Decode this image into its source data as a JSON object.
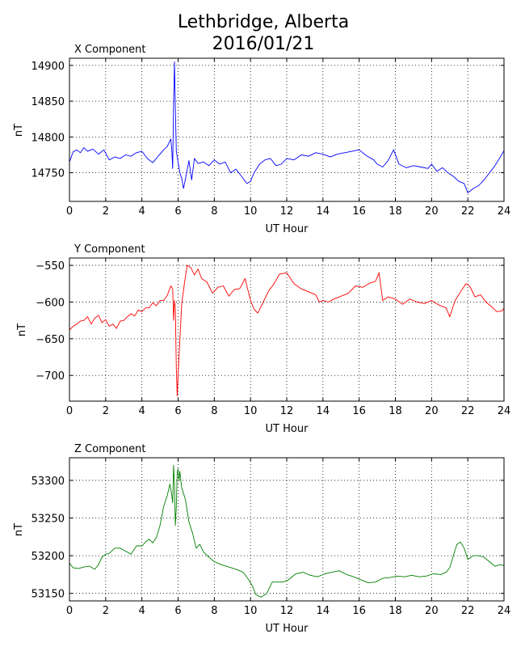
{
  "figure": {
    "title_line1": "Lethbridge, Alberta",
    "title_line2": "2016/01/21"
  },
  "chart_data": [
    {
      "type": "line",
      "title": "X Component",
      "xlabel": "UT Hour",
      "ylabel": "nT",
      "xlim": [
        0,
        24
      ],
      "ylim": [
        14710,
        14910
      ],
      "xticks": [
        0,
        2,
        4,
        6,
        8,
        10,
        12,
        14,
        16,
        18,
        20,
        22,
        24
      ],
      "yticks": [
        14750,
        14800,
        14850,
        14900
      ],
      "grid": true,
      "color": "#0000ff",
      "series": [
        {
          "x": [
            0,
            0.2,
            0.4,
            0.6,
            0.8,
            1.0,
            1.3,
            1.6,
            1.9,
            2.2,
            2.5,
            2.8,
            3.1,
            3.4,
            3.7,
            4.0,
            4.3,
            4.6,
            4.9,
            5.2,
            5.4,
            5.6,
            5.65,
            5.7,
            5.75,
            5.8,
            5.85,
            5.9,
            6.0,
            6.1,
            6.2,
            6.3,
            6.45,
            6.6,
            6.75,
            6.9,
            7.1,
            7.4,
            7.7,
            8.0,
            8.3,
            8.6,
            8.9,
            9.2,
            9.5,
            9.8,
            10.0,
            10.2,
            10.5,
            10.8,
            11.1,
            11.4,
            11.7,
            12.0,
            12.4,
            12.8,
            13.2,
            13.6,
            14.0,
            14.4,
            14.8,
            15.2,
            15.6,
            16.0,
            16.4,
            16.8,
            17.0,
            17.3,
            17.6,
            17.9,
            18.2,
            18.6,
            19.0,
            19.4,
            19.8,
            20.0,
            20.3,
            20.6,
            20.9,
            21.2,
            21.5,
            21.8,
            22.0,
            22.3,
            22.6,
            22.9,
            23.2,
            23.5,
            23.8,
            24.0
          ],
          "y": [
            14765,
            14779,
            14782,
            14778,
            14785,
            14780,
            14783,
            14776,
            14782,
            14768,
            14772,
            14770,
            14775,
            14773,
            14778,
            14780,
            14770,
            14764,
            14773,
            14782,
            14787,
            14797,
            14782,
            14756,
            14845,
            14905,
            14840,
            14780,
            14765,
            14750,
            14742,
            14728,
            14747,
            14767,
            14740,
            14770,
            14763,
            14765,
            14760,
            14768,
            14762,
            14765,
            14750,
            14755,
            14745,
            14735,
            14738,
            14750,
            14762,
            14768,
            14770,
            14760,
            14762,
            14770,
            14768,
            14775,
            14773,
            14778,
            14776,
            14772,
            14776,
            14778,
            14780,
            14782,
            14774,
            14768,
            14762,
            14758,
            14767,
            14782,
            14762,
            14757,
            14760,
            14758,
            14756,
            14762,
            14752,
            14757,
            14750,
            14745,
            14738,
            14735,
            14722,
            14728,
            14732,
            14740,
            14750,
            14760,
            14772,
            14781
          ]
        }
      ]
    },
    {
      "type": "line",
      "title": "Y Component",
      "xlabel": "UT Hour",
      "ylabel": "nT",
      "xlim": [
        0,
        24
      ],
      "ylim": [
        -735,
        -540
      ],
      "xticks": [
        0,
        2,
        4,
        6,
        8,
        10,
        12,
        14,
        16,
        18,
        20,
        22,
        24
      ],
      "yticks": [
        -700,
        -650,
        -600,
        -550
      ],
      "grid": true,
      "color": "#ff0000",
      "series": [
        {
          "x": [
            0,
            0.2,
            0.4,
            0.6,
            0.8,
            1.0,
            1.2,
            1.4,
            1.6,
            1.8,
            2.0,
            2.2,
            2.4,
            2.6,
            2.8,
            3.0,
            3.2,
            3.4,
            3.6,
            3.8,
            4.0,
            4.2,
            4.4,
            4.6,
            4.8,
            5.0,
            5.2,
            5.4,
            5.6,
            5.7,
            5.75,
            5.8,
            5.85,
            5.9,
            5.95,
            6.0,
            6.1,
            6.2,
            6.35,
            6.5,
            6.7,
            6.9,
            7.1,
            7.3,
            7.6,
            7.9,
            8.2,
            8.5,
            8.8,
            9.1,
            9.4,
            9.7,
            10.0,
            10.2,
            10.4,
            10.7,
            11.0,
            11.3,
            11.6,
            12.0,
            12.4,
            12.8,
            13.2,
            13.6,
            13.8,
            14.0,
            14.3,
            14.6,
            15.0,
            15.4,
            15.8,
            16.2,
            16.6,
            16.9,
            17.1,
            17.3,
            17.6,
            18.0,
            18.4,
            18.8,
            19.2,
            19.6,
            20.0,
            20.4,
            20.8,
            21.0,
            21.3,
            21.6,
            21.9,
            22.1,
            22.4,
            22.7,
            23.0,
            23.3,
            23.6,
            23.9,
            24.0
          ],
          "y": [
            -638,
            -633,
            -630,
            -626,
            -625,
            -620,
            -630,
            -622,
            -618,
            -628,
            -624,
            -633,
            -630,
            -636,
            -626,
            -625,
            -620,
            -616,
            -619,
            -611,
            -613,
            -608,
            -608,
            -601,
            -605,
            -598,
            -598,
            -591,
            -578,
            -582,
            -625,
            -598,
            -608,
            -690,
            -728,
            -700,
            -651,
            -602,
            -575,
            -550,
            -553,
            -563,
            -555,
            -568,
            -573,
            -588,
            -580,
            -578,
            -592,
            -583,
            -582,
            -568,
            -598,
            -610,
            -615,
            -600,
            -585,
            -575,
            -562,
            -560,
            -575,
            -582,
            -586,
            -590,
            -600,
            -598,
            -600,
            -596,
            -592,
            -588,
            -578,
            -580,
            -574,
            -572,
            -560,
            -598,
            -593,
            -596,
            -603,
            -596,
            -600,
            -602,
            -598,
            -604,
            -608,
            -620,
            -598,
            -586,
            -575,
            -578,
            -593,
            -590,
            -600,
            -606,
            -613,
            -612,
            -608
          ]
        }
      ]
    },
    {
      "type": "line",
      "title": "Z Component",
      "xlabel": "UT Hour",
      "ylabel": "nT",
      "xlim": [
        0,
        24
      ],
      "ylim": [
        53140,
        53330
      ],
      "xticks": [
        0,
        2,
        4,
        6,
        8,
        10,
        12,
        14,
        16,
        18,
        20,
        22,
        24
      ],
      "yticks": [
        53150,
        53200,
        53250,
        53300
      ],
      "grid": true,
      "color": "#008000",
      "series": [
        {
          "x": [
            0,
            0.2,
            0.5,
            0.8,
            1.1,
            1.4,
            1.6,
            1.8,
            2.0,
            2.2,
            2.5,
            2.8,
            3.1,
            3.4,
            3.7,
            4.0,
            4.2,
            4.4,
            4.6,
            4.8,
            5.0,
            5.2,
            5.4,
            5.55,
            5.65,
            5.7,
            5.75,
            5.8,
            5.85,
            5.9,
            5.95,
            6.0,
            6.05,
            6.1,
            6.2,
            6.4,
            6.6,
            6.8,
            7.0,
            7.2,
            7.4,
            7.7,
            8.0,
            8.4,
            8.8,
            9.2,
            9.6,
            9.9,
            10.1,
            10.3,
            10.6,
            10.9,
            11.2,
            11.5,
            11.8,
            12.1,
            12.5,
            12.9,
            13.3,
            13.7,
            14.1,
            14.5,
            14.9,
            15.3,
            15.7,
            16.1,
            16.5,
            16.9,
            17.3,
            17.7,
            18.1,
            18.5,
            18.9,
            19.3,
            19.7,
            20.1,
            20.5,
            20.8,
            21.0,
            21.2,
            21.4,
            21.6,
            21.8,
            22.0,
            22.3,
            22.6,
            22.9,
            23.2,
            23.5,
            23.8,
            24.0
          ],
          "y": [
            53190,
            53184,
            53183,
            53185,
            53186,
            53182,
            53188,
            53198,
            53202,
            53203,
            53210,
            53210,
            53206,
            53202,
            53213,
            53213,
            53218,
            53222,
            53217,
            53224,
            53240,
            53265,
            53280,
            53295,
            53280,
            53270,
            53320,
            53295,
            53240,
            53265,
            53310,
            53315,
            53300,
            53312,
            53290,
            53275,
            53245,
            53230,
            53210,
            53215,
            53205,
            53198,
            53192,
            53188,
            53185,
            53182,
            53178,
            53168,
            53160,
            53148,
            53145,
            53150,
            53165,
            53165,
            53165,
            53168,
            53176,
            53178,
            53174,
            53172,
            53176,
            53178,
            53180,
            53175,
            53172,
            53168,
            53164,
            53165,
            53170,
            53171,
            53173,
            53172,
            53174,
            53172,
            53173,
            53176,
            53175,
            53178,
            53184,
            53200,
            53215,
            53218,
            53210,
            53195,
            53200,
            53200,
            53198,
            53192,
            53186,
            53188,
            53187
          ]
        }
      ]
    }
  ]
}
